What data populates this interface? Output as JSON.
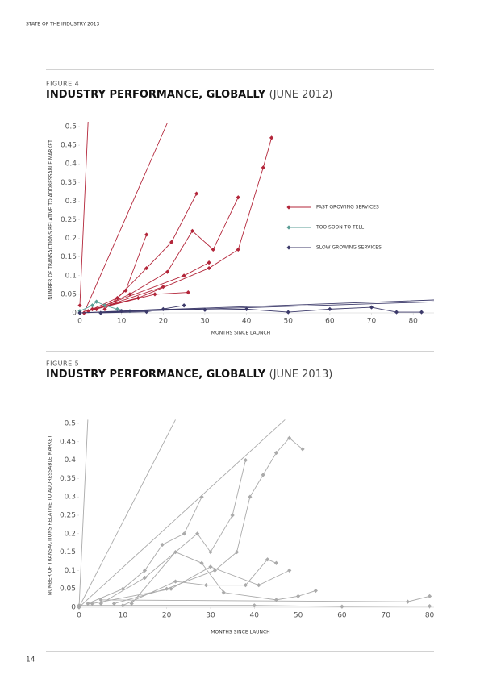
{
  "header": "STATE OF THE INDUSTRY 2013",
  "page_number": "14",
  "chart_data": [
    {
      "type": "line",
      "figure_label": "FIGURE 4",
      "title": "INDUSTRY PERFORMANCE, GLOBALLY",
      "title_note": "(JUNE 2012)",
      "xlabel": "MONTHS SINCE LAUNCH",
      "ylabel": "NUMBER OF TRANSACTIONS RELATIVE TO ADDRESSABLE MARKET",
      "xlim": [
        0,
        85
      ],
      "ylim": [
        0,
        0.5
      ],
      "xticks": [
        0,
        10,
        20,
        30,
        40,
        50,
        60,
        70,
        80
      ],
      "yticks": [
        0,
        0.05,
        0.1,
        0.15,
        0.2,
        0.25,
        0.3,
        0.35,
        0.4,
        0.45,
        0.5
      ],
      "legend": "right",
      "series": [
        {
          "name": "FAST GROWING SERVICES",
          "color": "#b3263a",
          "x": [
            0,
            2,
            null,
            1,
            21,
            null,
            3,
            9,
            16,
            22,
            28,
            null,
            4,
            12,
            21,
            27,
            32,
            38,
            null,
            6,
            11,
            16,
            null,
            2,
            18,
            26,
            null,
            3,
            14,
            31,
            38,
            44,
            46,
            null,
            4,
            20,
            null,
            6,
            25,
            31
          ],
          "values": [
            0.02,
            0.52,
            null,
            0,
            0.51,
            null,
            0.01,
            0.04,
            0.12,
            0.19,
            0.32,
            null,
            0.01,
            0.05,
            0.11,
            0.22,
            0.17,
            0.31,
            null,
            0.01,
            0.06,
            0.21,
            null,
            0.005,
            0.05,
            0.055,
            null,
            0.01,
            0.04,
            0.12,
            0.17,
            0.39,
            0.47,
            null,
            0.01,
            0.07,
            null,
            0.02,
            0.1,
            0.135
          ]
        },
        {
          "name": "TOO SOON TO TELL",
          "color": "#5a9e96",
          "x": [
            0,
            3,
            4,
            6,
            9,
            12
          ],
          "values": [
            0.005,
            0.02,
            0.03,
            0.02,
            0.01,
            0.005
          ]
        },
        {
          "name": "SLOW GROWING SERVICES",
          "color": "#3c3a6a",
          "x": [
            0,
            10,
            20,
            30,
            40,
            50,
            60,
            70,
            76,
            82,
            null,
            5,
            16,
            25,
            null,
            10,
            86,
            null,
            0,
            86
          ],
          "values": [
            0,
            0.005,
            0.01,
            0.008,
            0.01,
            0.002,
            0.01,
            0.015,
            0.002,
            0.002,
            null,
            0,
            0.003,
            0.02,
            null,
            0.005,
            0.035,
            null,
            0,
            0.03
          ]
        }
      ]
    },
    {
      "type": "line",
      "figure_label": "FIGURE 5",
      "title": "INDUSTRY PERFORMANCE, GLOBALLY",
      "title_note": "(JUNE 2013)",
      "xlabel": "MONTHS SINCE LAUNCH",
      "ylabel": "NUMBER OF TRANSACTIONS RELATIVE TO ADDRESSABLE MARKET",
      "xlim": [
        0,
        81
      ],
      "ylim": [
        0,
        0.5
      ],
      "xticks": [
        0,
        10,
        20,
        30,
        40,
        50,
        60,
        70,
        80
      ],
      "yticks": [
        0,
        0.05,
        0.1,
        0.15,
        0.2,
        0.25,
        0.3,
        0.35,
        0.4,
        0.45,
        0.5
      ],
      "series": [
        {
          "color": "#aaaaaa",
          "x": [
            0,
            2,
            null,
            0,
            22,
            null,
            2,
            10,
            15,
            19,
            24,
            28,
            null,
            5,
            15,
            27,
            30,
            35,
            38,
            null,
            8,
            20,
            31,
            36,
            39,
            42,
            45,
            48,
            51,
            null,
            10,
            22,
            29,
            38,
            43,
            45,
            null,
            3,
            21,
            30,
            41,
            48,
            null,
            0,
            47,
            null,
            12,
            22,
            28,
            33,
            45,
            50,
            54,
            null,
            0,
            40,
            60,
            80,
            null,
            5,
            75,
            80
          ],
          "values": [
            0,
            0.51,
            null,
            0,
            0.51,
            null,
            0.01,
            0.05,
            0.1,
            0.17,
            0.2,
            0.3,
            null,
            0.01,
            0.08,
            0.2,
            0.15,
            0.25,
            0.4,
            null,
            0.01,
            0.05,
            0.1,
            0.15,
            0.3,
            0.36,
            0.42,
            0.46,
            0.43,
            null,
            0.005,
            0.07,
            0.06,
            0.06,
            0.13,
            0.12,
            null,
            0.01,
            0.05,
            0.11,
            0.06,
            0.1,
            null,
            0,
            0.51,
            null,
            0.01,
            0.15,
            0.12,
            0.04,
            0.02,
            0.03,
            0.045,
            null,
            0.005,
            0.005,
            0.002,
            0.003,
            null,
            0.02,
            0.015,
            0.03
          ]
        }
      ]
    }
  ]
}
